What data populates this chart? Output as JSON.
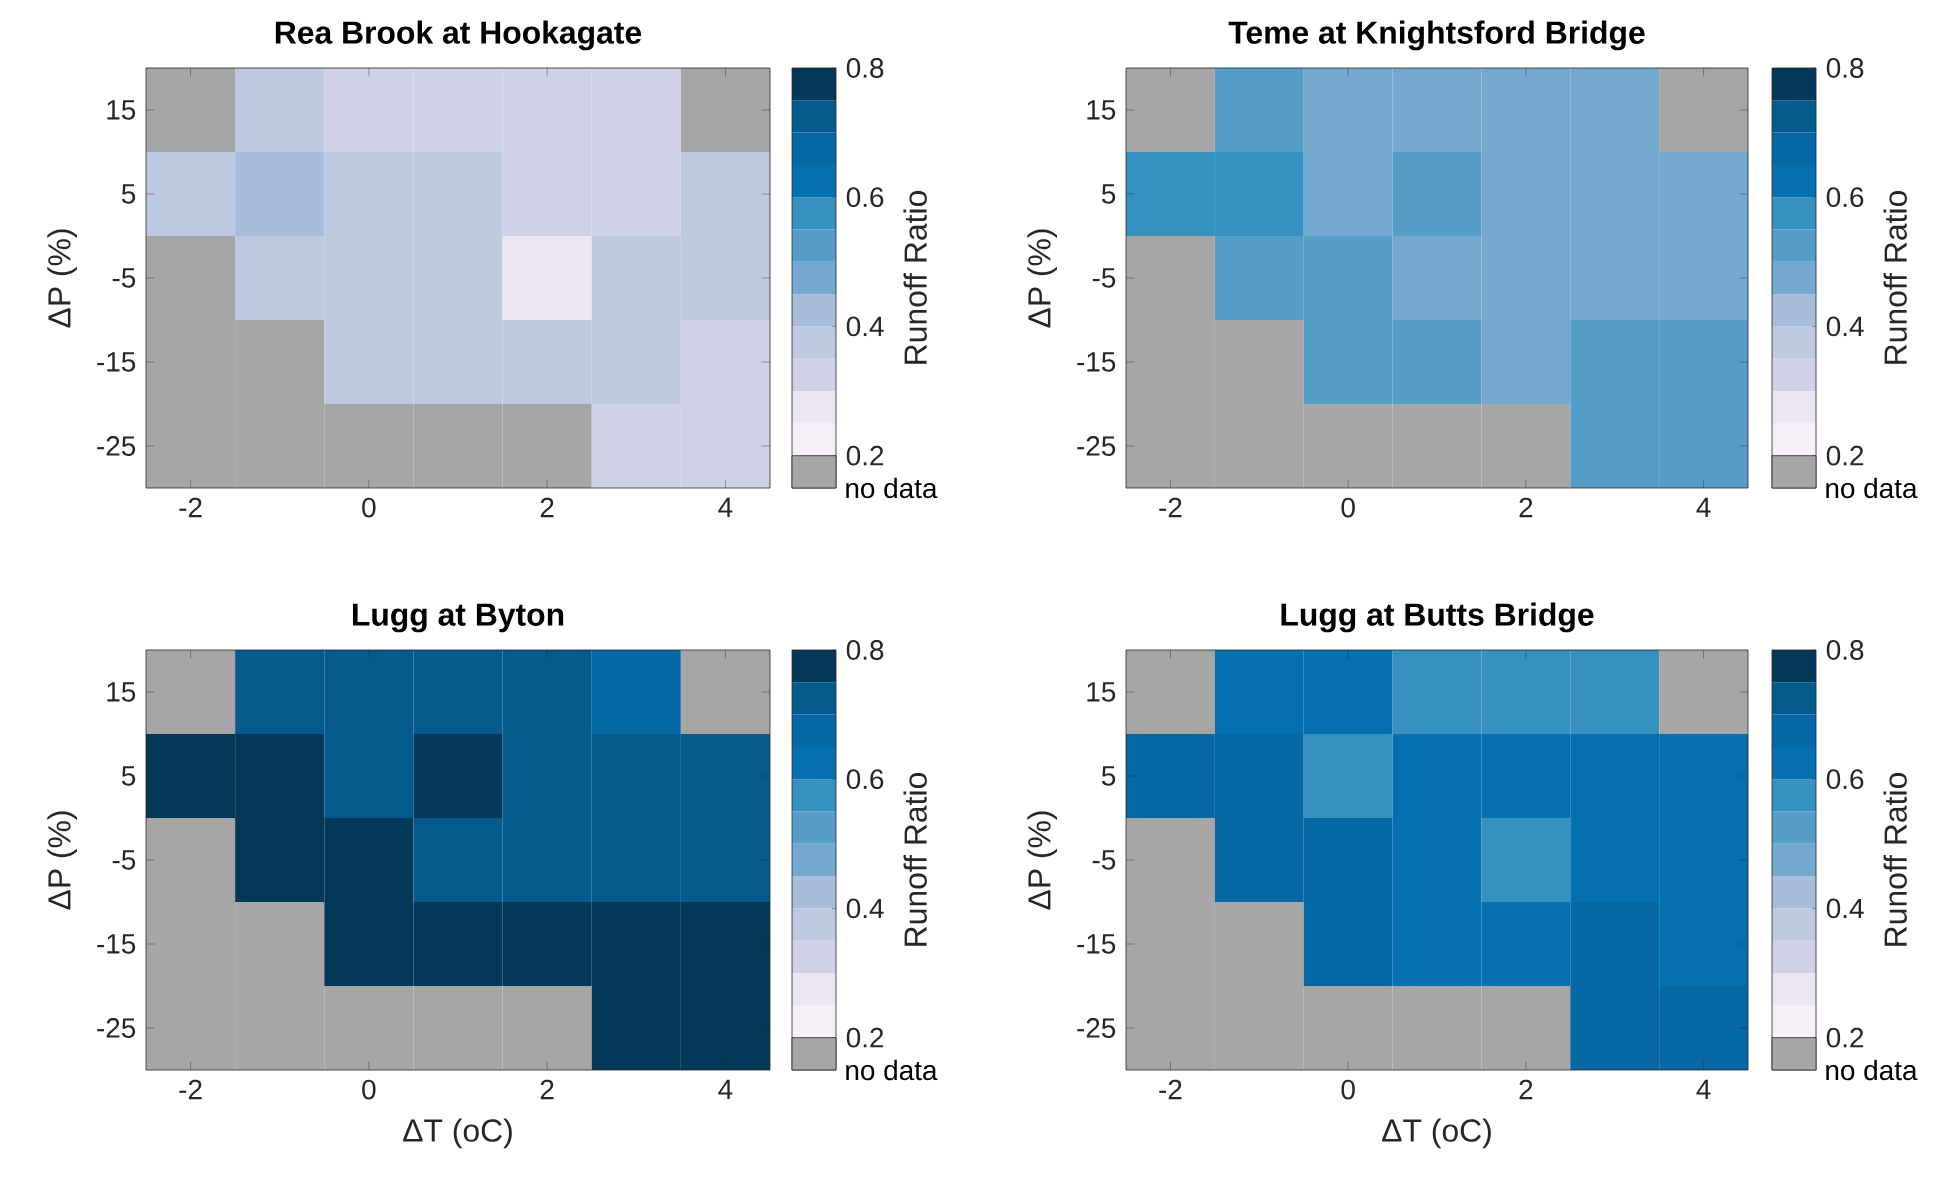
{
  "chart_data": [
    {
      "type": "heatmap",
      "title": "Rea Brook at Hookagate",
      "ylabel": "ΔP (%)",
      "clabel": "Runoff Ratio",
      "categories": [
        "-2",
        null,
        "0",
        null,
        "2",
        null,
        "4"
      ],
      "y_categories": [
        "15",
        "5",
        "-5",
        "-15",
        "-25"
      ],
      "cells": [
        [
          null,
          0.375,
          0.325,
          0.325,
          0.325,
          0.325,
          null
        ],
        [
          0.375,
          0.425,
          0.375,
          0.375,
          0.325,
          0.325,
          0.375
        ],
        [
          null,
          0.375,
          0.375,
          0.375,
          0.275,
          0.375,
          0.375
        ],
        [
          null,
          null,
          0.375,
          0.375,
          0.375,
          0.375,
          0.325
        ],
        [
          null,
          null,
          null,
          null,
          null,
          0.325,
          0.325
        ]
      ],
      "clim": [
        0.2,
        0.8
      ],
      "cticks": [
        0.2,
        0.4,
        0.6,
        0.8
      ],
      "colors": [
        "#f6eff7",
        "#ebe6f1",
        "#d0d1e6",
        "#bdc9e1",
        "#a6bddb",
        "#74a9cf",
        "#559ec8",
        "#3690c0",
        "#0570b0",
        "#0567a3",
        "#045a8d",
        "#023858"
      ],
      "annotations": [
        "no data"
      ]
    },
    {
      "type": "heatmap",
      "title": "Teme at Knightsford Bridge",
      "ylabel": "ΔP (%)",
      "clabel": "Runoff Ratio",
      "categories": [
        "-2",
        null,
        "0",
        null,
        "2",
        null,
        "4"
      ],
      "y_categories": [
        "15",
        "5",
        "-5",
        "-15",
        "-25"
      ],
      "cells": [
        [
          null,
          0.525,
          0.475,
          0.475,
          0.475,
          0.475,
          null
        ],
        [
          0.575,
          0.575,
          0.475,
          0.525,
          0.475,
          0.475,
          0.475
        ],
        [
          null,
          0.525,
          0.525,
          0.475,
          0.475,
          0.475,
          0.475
        ],
        [
          null,
          null,
          0.525,
          0.525,
          0.475,
          0.525,
          0.525
        ],
        [
          null,
          null,
          null,
          null,
          null,
          0.525,
          0.525
        ]
      ],
      "clim": [
        0.2,
        0.8
      ],
      "cticks": [
        0.2,
        0.4,
        0.6,
        0.8
      ],
      "colors": [
        "#f6eff7",
        "#ebe6f1",
        "#d0d1e6",
        "#bdc9e1",
        "#a6bddb",
        "#74a9cf",
        "#559ec8",
        "#3690c0",
        "#0570b0",
        "#0567a3",
        "#045a8d",
        "#023858"
      ],
      "annotations": [
        "no data"
      ]
    },
    {
      "type": "heatmap",
      "title": "Lugg at Byton",
      "xlabel": "ΔT (oC)",
      "ylabel": "ΔP (%)",
      "clabel": "Runoff Ratio",
      "categories": [
        "-2",
        null,
        "0",
        null,
        "2",
        null,
        "4"
      ],
      "y_categories": [
        "15",
        "5",
        "-5",
        "-15",
        "-25"
      ],
      "cells": [
        [
          null,
          0.725,
          0.725,
          0.725,
          0.725,
          0.675,
          null
        ],
        [
          0.775,
          0.775,
          0.725,
          0.775,
          0.725,
          0.725,
          0.725
        ],
        [
          null,
          0.775,
          0.775,
          0.725,
          0.725,
          0.725,
          0.725
        ],
        [
          null,
          null,
          0.775,
          0.775,
          0.775,
          0.775,
          0.775
        ],
        [
          null,
          null,
          null,
          null,
          null,
          0.775,
          0.775
        ]
      ],
      "clim": [
        0.2,
        0.8
      ],
      "cticks": [
        0.2,
        0.4,
        0.6,
        0.8
      ],
      "colors": [
        "#f6eff7",
        "#ebe6f1",
        "#d0d1e6",
        "#bdc9e1",
        "#a6bddb",
        "#74a9cf",
        "#559ec8",
        "#3690c0",
        "#0570b0",
        "#0567a3",
        "#045a8d",
        "#023858"
      ],
      "annotations": [
        "no data"
      ]
    },
    {
      "type": "heatmap",
      "title": "Lugg at Butts Bridge",
      "xlabel": "ΔT (oC)",
      "ylabel": "ΔP (%)",
      "clabel": "Runoff Ratio",
      "categories": [
        "-2",
        null,
        "0",
        null,
        "2",
        null,
        "4"
      ],
      "y_categories": [
        "15",
        "5",
        "-5",
        "-15",
        "-25"
      ],
      "cells": [
        [
          null,
          0.625,
          0.625,
          0.575,
          0.575,
          0.575,
          null
        ],
        [
          0.675,
          0.675,
          0.575,
          0.625,
          0.625,
          0.625,
          0.625
        ],
        [
          null,
          0.675,
          0.675,
          0.625,
          0.575,
          0.625,
          0.625
        ],
        [
          null,
          null,
          0.675,
          0.625,
          0.625,
          0.675,
          0.625
        ],
        [
          null,
          null,
          null,
          null,
          null,
          0.675,
          0.675
        ]
      ],
      "clim": [
        0.2,
        0.8
      ],
      "cticks": [
        0.2,
        0.4,
        0.6,
        0.8
      ],
      "colors": [
        "#f6eff7",
        "#ebe6f1",
        "#d0d1e6",
        "#bdc9e1",
        "#a6bddb",
        "#74a9cf",
        "#559ec8",
        "#3690c0",
        "#0570b0",
        "#0567a3",
        "#045a8d",
        "#023858"
      ],
      "annotations": [
        "no data"
      ]
    }
  ]
}
